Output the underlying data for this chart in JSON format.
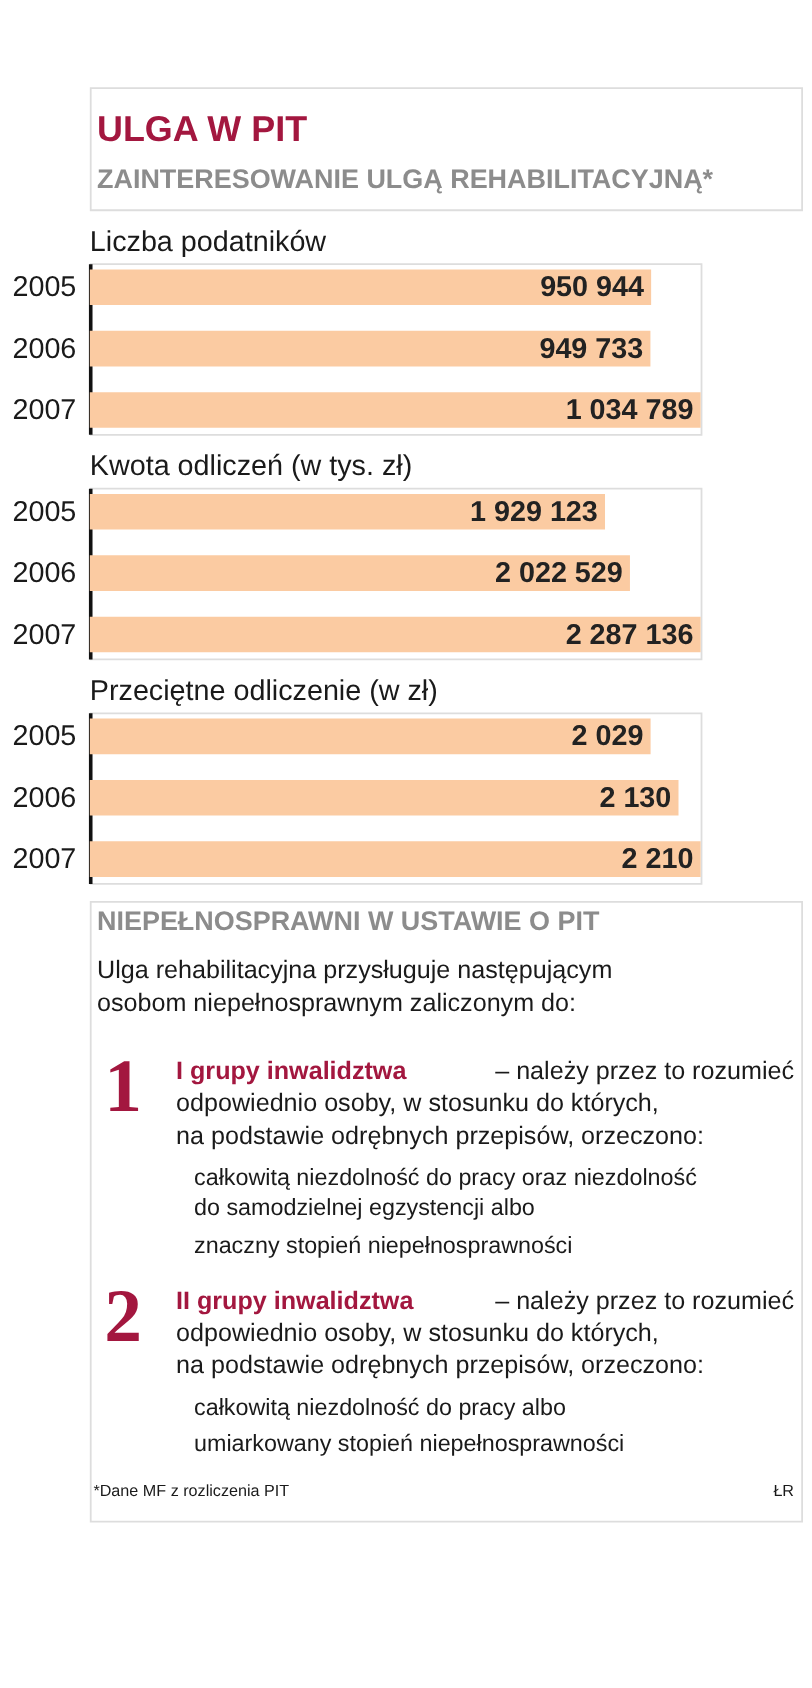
{
  "chart_data": [
    {
      "type": "other",
      "title": "ULGA W PIT",
      "subtitle": "ZAINTERESOWANIE ULGĄ REHABILITACYJNĄ*"
    },
    {
      "type": "bar",
      "orientation": "horizontal",
      "title": "Liczba podatników",
      "categories": [
        "2005",
        "2006",
        "2007"
      ],
      "values": [
        950944,
        949733,
        1034789
      ],
      "value_labels": [
        "950 944",
        "949 733",
        "1 034 789"
      ],
      "color": "#fbcba2"
    },
    {
      "type": "bar",
      "orientation": "horizontal",
      "title": "Kwota odliczeń (w tys. zł)",
      "categories": [
        "2005",
        "2006",
        "2007"
      ],
      "values": [
        1929123,
        2022529,
        2287136
      ],
      "value_labels": [
        "1 929 123",
        "2 022 529",
        "2 287 136"
      ],
      "color": "#fbcba2"
    },
    {
      "type": "bar",
      "orientation": "horizontal",
      "title": "Przeciętne odliczenie (w zł)",
      "categories": [
        "2005",
        "2006",
        "2007"
      ],
      "values": [
        2029,
        2130,
        2210
      ],
      "value_labels": [
        "2 029",
        "2 130",
        "2 210"
      ],
      "color": "#fbcba2"
    },
    {
      "type": "other",
      "title": "NIEPEŁNOSPRAWNI W USTAWIE O PIT",
      "subtitle": "Ulga rehabilitacyjna przysługuje następującym\nosobom niepełnosprawnym zaliczonym do:",
      "annotations": [
        "1",
        "I grupy inwalidztwa",
        "– należy przez to rozumieć",
        "odpowiednio osoby, w stosunku do których,\nna podstawie odrębnych przepisów, orzeczono:",
        "całkowitą niezdolność do pracy oraz niezdolność\ndo samodzielnej egzystencji albo",
        "znaczny stopień niepełnosprawności",
        "2",
        "II grupy inwalidztwa",
        "– należy przez to rozumieć",
        "odpowiednio osoby, w stosunku do których,\nna podstawie odrębnych przepisów, orzeczono:",
        "całkowitą niezdolność do pracy albo",
        "umiarkowany stopień niepełnosprawności",
        "*Dane MF z rozliczenia PIT",
        "ŁR"
      ]
    }
  ]
}
